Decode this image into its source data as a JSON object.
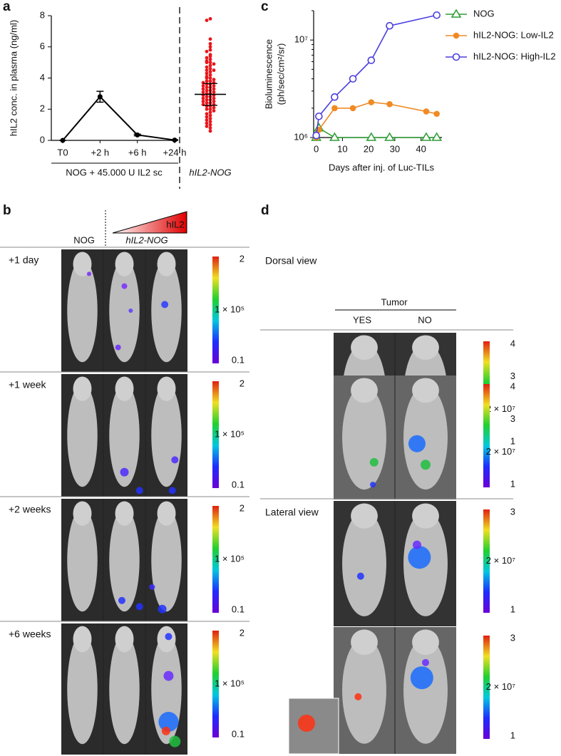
{
  "labels": {
    "a": "a",
    "b": "b",
    "c": "c",
    "d": "d"
  },
  "chart_data": [
    {
      "type": "line",
      "ylabel": "hIL2 conc. in plasma (ng/ml)",
      "categories": [
        "T0",
        "+2 h",
        "+6 h",
        "+24 h"
      ],
      "values": [
        0,
        2.8,
        0.35,
        0.02
      ],
      "errors": [
        0,
        0.35,
        0.05,
        0.02
      ],
      "color": "#000000",
      "ylim": [
        0,
        8
      ],
      "yticks": [
        0,
        2,
        4,
        6,
        8
      ],
      "group_label": "NOG + 45.000 U IL2 sc",
      "strip": {
        "name": "hIL2-NOG",
        "color": "#e8161b",
        "mean": 2.95,
        "error": 0.7,
        "values": [
          7.8,
          7.7,
          6.5,
          6.2,
          6.0,
          5.8,
          5.7,
          5.5,
          5.4,
          5.3,
          5.2,
          5.1,
          5.0,
          5.0,
          4.9,
          4.8,
          4.7,
          4.6,
          4.5,
          4.5,
          4.4,
          4.3,
          4.2,
          4.1,
          4.0,
          4.0,
          3.9,
          3.8,
          3.8,
          3.7,
          3.7,
          3.6,
          3.6,
          3.5,
          3.5,
          3.4,
          3.4,
          3.3,
          3.3,
          3.2,
          3.2,
          3.1,
          3.1,
          3.0,
          3.0,
          2.9,
          2.9,
          2.8,
          2.8,
          2.7,
          2.7,
          2.6,
          2.6,
          2.5,
          2.5,
          2.4,
          2.4,
          2.3,
          2.3,
          2.2,
          2.2,
          2.1,
          2.0,
          2.0,
          1.9,
          1.8,
          1.7,
          1.6,
          1.5,
          1.4,
          1.3,
          1.2,
          1.1,
          1.0,
          0.9,
          0.8,
          0.6
        ]
      }
    },
    {
      "type": "line",
      "log_y": true,
      "ylabel": [
        "Bioluminescence",
        "(ph/sec/cm²/sr)"
      ],
      "xlabel": "Days after inj. of Luc-TILs",
      "xlim": [
        -1,
        48
      ],
      "xticks": [
        0,
        10,
        20,
        30,
        40
      ],
      "ylim": [
        1000000,
        20000000
      ],
      "yticks": [
        {
          "value": 1000000,
          "label": "10⁶"
        },
        {
          "value": 10000000,
          "label": "10⁷"
        }
      ],
      "series": [
        {
          "name": "NOG",
          "color": "#2e9e35",
          "marker": "triangle",
          "x": [
            0,
            1,
            7,
            21,
            28,
            42,
            46
          ],
          "values": [
            1000000,
            1250000,
            1000000,
            1000000,
            1000000,
            1000000,
            1000000
          ]
        },
        {
          "name": "hIL2-NOG: Low-IL2",
          "color": "#f08a24",
          "marker": "dot",
          "x": [
            0,
            1,
            7,
            14,
            21,
            28,
            42,
            46
          ],
          "values": [
            1000000,
            1200000,
            2000000,
            2000000,
            2300000,
            2200000,
            1850000,
            1750000
          ]
        },
        {
          "name": "hIL2-NOG: High-IL2",
          "color": "#4b3fe0",
          "marker": "circle",
          "x": [
            0,
            1,
            7,
            14,
            21,
            28,
            46
          ],
          "values": [
            1050000,
            1650000,
            2600000,
            4000000,
            6200000,
            14000000,
            18000000
          ]
        }
      ]
    }
  ],
  "panel_b": {
    "columns": [
      "NOG",
      "hIL2-NOG"
    ],
    "gradient_label": "hIL2",
    "rows": [
      "+1 day",
      "+1 week",
      "+2 weeks",
      "+6 weeks"
    ],
    "colorbar": [
      "2",
      "1 × 10⁵",
      "0.1"
    ]
  },
  "panel_d": {
    "header": "Tumor",
    "columns": [
      "YES",
      "NO"
    ],
    "views": [
      "Dorsal view",
      "Lateral view"
    ],
    "colorbars": [
      [
        "4",
        "3",
        "2 × 10⁷",
        "1"
      ],
      [
        "3",
        "2 × 10⁷",
        "1"
      ]
    ]
  }
}
